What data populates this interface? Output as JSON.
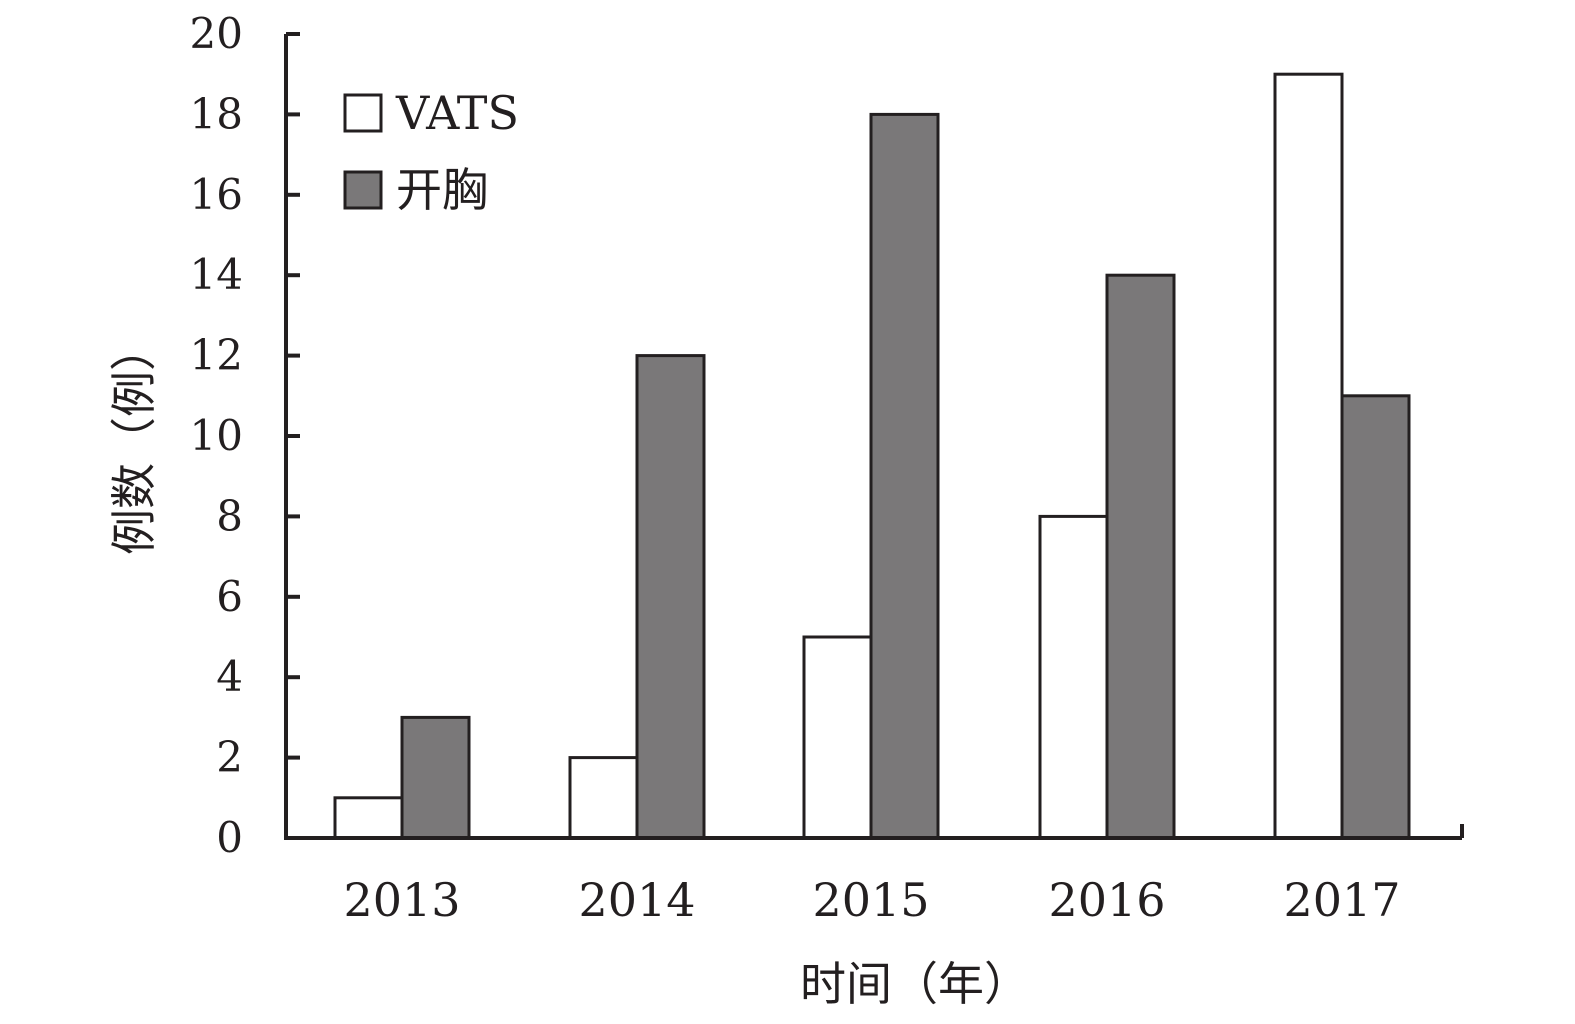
{
  "chart_data": {
    "type": "bar",
    "categories": [
      "2013",
      "2014",
      "2015",
      "2016",
      "2017"
    ],
    "series": [
      {
        "name": "VATS",
        "values": [
          1,
          2,
          5,
          8,
          19
        ],
        "color": "#ffffff"
      },
      {
        "name": "开胸",
        "values": [
          3,
          12,
          18,
          14,
          11
        ],
        "color": "#7a7879"
      }
    ],
    "yticks": [
      "0",
      "2",
      "4",
      "6",
      "8",
      "10",
      "12",
      "14",
      "16",
      "18",
      "20"
    ],
    "ylim": [
      0,
      20
    ],
    "xlabel": "时间（年）",
    "ylabel": "例数（例）",
    "title": "",
    "grid": false,
    "legend_position": "top-left",
    "edge_color": "#231f20"
  }
}
